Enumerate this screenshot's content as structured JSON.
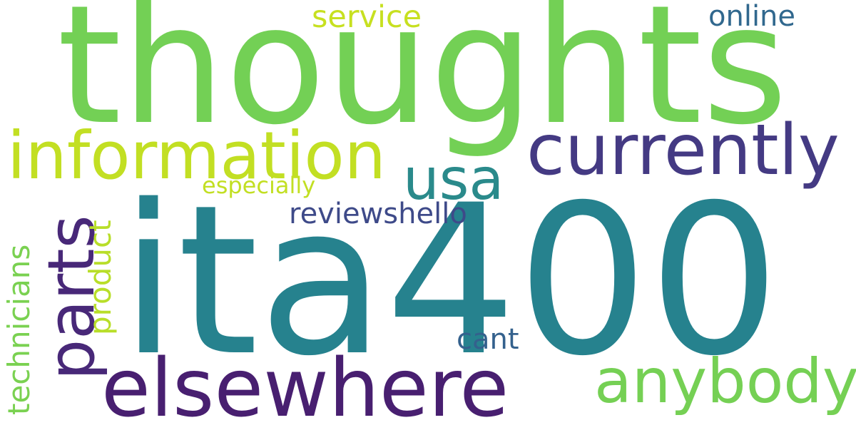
{
  "words": [
    {
      "text": "ita400",
      "color": "#26828e"
    },
    {
      "text": "thoughts",
      "color": "#73d055"
    },
    {
      "text": "elsewhere",
      "color": "#481f70"
    },
    {
      "text": "information",
      "color": "#c2df23"
    },
    {
      "text": "currently",
      "color": "#443a83"
    },
    {
      "text": "parts",
      "color": "#482878"
    },
    {
      "text": "anybody",
      "color": "#75d054"
    },
    {
      "text": "usa",
      "color": "#2a8a8b"
    },
    {
      "text": "service",
      "color": "#c7e020"
    },
    {
      "text": "online",
      "color": "#31688e"
    },
    {
      "text": "reviewshello",
      "color": "#3e4a89"
    },
    {
      "text": "especially",
      "color": "#c2df23"
    },
    {
      "text": "technicians",
      "color": "#7ad151"
    },
    {
      "text": "product",
      "color": "#b8de29"
    },
    {
      "text": "cant",
      "color": "#34618d"
    }
  ]
}
